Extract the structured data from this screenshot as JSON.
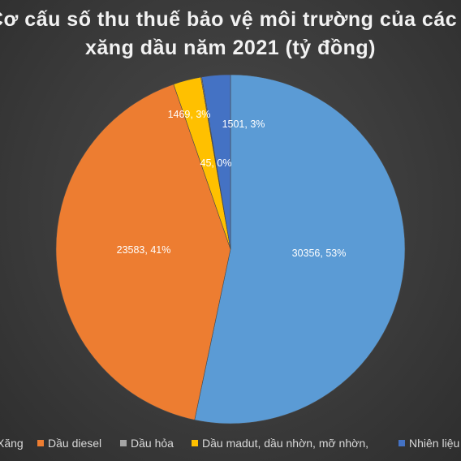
{
  "chart_data": {
    "type": "pie",
    "title_lines": [
      "Cơ cấu số thu thuế bảo vệ môi trường của các",
      "xăng dầu năm 2021 (tỷ đồng)"
    ],
    "categories": [
      "Xăng",
      "Dầu diesel",
      "Dầu hỏa",
      "Dầu madut, dầu nhờn, mỡ nhờn,",
      "Nhiên liệu"
    ],
    "values": [
      30356,
      23583,
      45,
      1469,
      1501
    ],
    "data_labels": [
      "30356, 53%",
      "23583, 41%",
      "45, 0%",
      "1469, 3%",
      "1501, 3%"
    ],
    "legend_labels": [
      "Xăng",
      "Dầu diesel",
      "Dầu hỏa",
      "Dầu madut, dầu nhờn, mỡ nhờn,",
      "Nhiên liệu"
    ],
    "colors": [
      "#5b9bd5",
      "#ed7d31",
      "#a5a5a5",
      "#ffc000",
      "#4472c4"
    ],
    "slice_order": [
      0,
      1,
      3,
      2,
      4
    ],
    "legend_position": "bottom"
  }
}
